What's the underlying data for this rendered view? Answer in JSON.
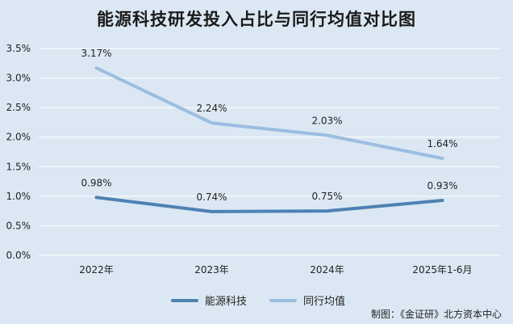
{
  "title": "能源科技研发投入占比与同行均值对比图",
  "source": "制图：《金证研》北方资本中心",
  "chart_data": {
    "type": "line",
    "categories": [
      "2022年",
      "2023年",
      "2024年",
      "2025年1-6月"
    ],
    "yticks": [
      "0.0%",
      "0.5%",
      "1.0%",
      "1.5%",
      "2.0%",
      "2.5%",
      "3.0%",
      "3.5%"
    ],
    "ylim": [
      0,
      3.5
    ],
    "grid": true,
    "legend_position": "bottom",
    "series": [
      {
        "name": "能源科技",
        "values": [
          0.98,
          0.74,
          0.75,
          0.93
        ],
        "labels": [
          "0.98%",
          "0.74%",
          "0.75%",
          "0.93%"
        ],
        "color": "#4f81b3"
      },
      {
        "name": "同行均值",
        "values": [
          3.17,
          2.24,
          2.03,
          1.64
        ],
        "labels": [
          "3.17%",
          "2.24%",
          "2.03%",
          "1.64%"
        ],
        "color": "#9dbde0"
      }
    ]
  }
}
